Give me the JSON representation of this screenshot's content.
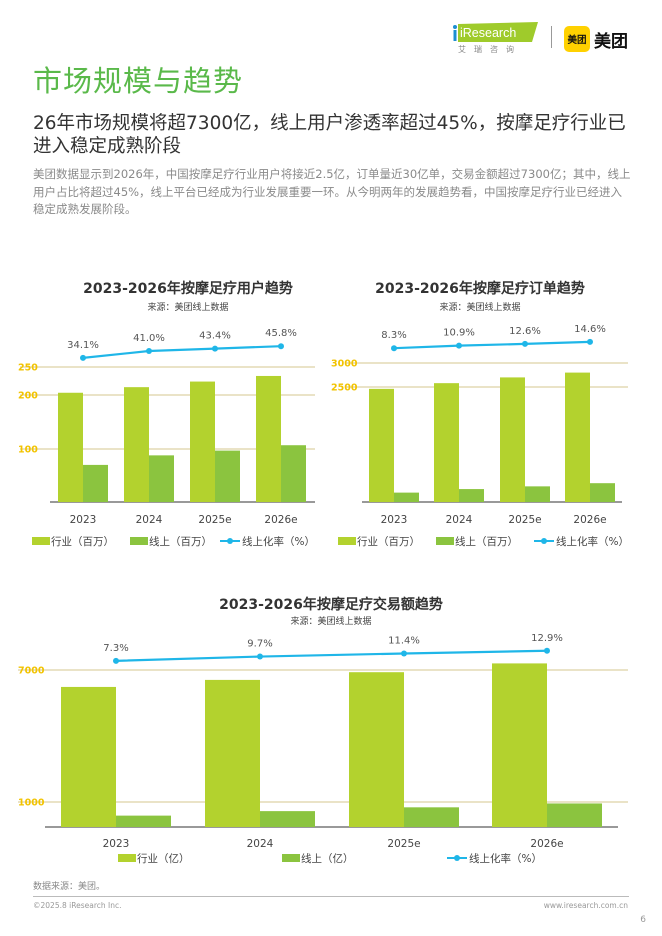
{
  "header": {
    "section_title": "市场规模与趋势",
    "logo_iresearch": "iResearch",
    "logo_iresearch_cn": "艾瑞咨询",
    "logo_meituan_badge": "美团",
    "logo_meituan": "美团"
  },
  "headline": "26年市场规模将超7300亿，线上用户渗透率超过45%，按摩足疗行业已进入稳定成熟阶段",
  "summary": "美团数据显示到2026年，中国按摩足疗行业用户将接近2.5亿，订单量近30亿单，交易金额超过7300亿；其中，线上用户占比将超过45%，线上平台已经成为行业发展重要一环。从今明两年的发展趋势看，中国按摩足疗行业已经进入稳定成熟发展阶段。",
  "colors": {
    "industry": "#b3d22e",
    "online": "#8bc43f",
    "rate": "#1fb6e8",
    "tick": "#f2c300",
    "title": "#5ab94a"
  },
  "chart_data": [
    {
      "type": "bar",
      "title": "2023-2026年按摩足疗用户趋势",
      "subtitle": "来源：美团线上数据",
      "categories": [
        "2023",
        "2024",
        "2025e",
        "2026e"
      ],
      "yticks": [
        100,
        200,
        250
      ],
      "y_axis_broken": true,
      "series": [
        {
          "name": "行业（百万）",
          "type": "bar",
          "values": [
            204,
            214,
            224,
            234
          ]
        },
        {
          "name": "线上（百万）",
          "type": "bar",
          "values": [
            70,
            88,
            97,
            107
          ]
        },
        {
          "name": "线上化率（%）",
          "type": "line",
          "values": [
            34.1,
            41.0,
            43.4,
            45.8
          ],
          "labels": [
            "34.1%",
            "41.0%",
            "43.4%",
            "45.8%"
          ]
        }
      ],
      "grid": true,
      "legend": "bottom"
    },
    {
      "type": "bar",
      "title": "2023-2026年按摩足疗订单趋势",
      "subtitle": "来源：美团线上数据",
      "categories": [
        "2023",
        "2024",
        "2025e",
        "2026e"
      ],
      "yticks": [
        2500,
        3000
      ],
      "y_axis_broken": true,
      "series": [
        {
          "name": "行业（百万）",
          "type": "bar",
          "values": [
            2460,
            2580,
            2700,
            2800
          ]
        },
        {
          "name": "线上（百万）",
          "type": "bar",
          "values": [
            204,
            281,
            340,
            409
          ]
        },
        {
          "name": "线上化率（%）",
          "type": "line",
          "values": [
            8.3,
            10.9,
            12.6,
            14.6
          ],
          "labels": [
            "8.3%",
            "10.9%",
            "12.6%",
            "14.6%"
          ]
        }
      ],
      "grid": true,
      "legend": "bottom"
    },
    {
      "type": "bar",
      "title": "2023-2026年按摩足疗交易额趋势",
      "subtitle": "来源：美团线上数据",
      "categories": [
        "2023",
        "2024",
        "2025e",
        "2026e"
      ],
      "yticks": [
        1000,
        7000
      ],
      "y_axis_broken": true,
      "series": [
        {
          "name": "行业（亿）",
          "type": "bar",
          "values": [
            6230,
            6550,
            6900,
            7300
          ]
        },
        {
          "name": "线上（亿）",
          "type": "bar",
          "values": [
            455,
            635,
            787,
            942
          ]
        },
        {
          "name": "线上化率（%）",
          "type": "line",
          "values": [
            7.3,
            9.7,
            11.4,
            12.9
          ],
          "labels": [
            "7.3%",
            "9.7%",
            "11.4%",
            "12.9%"
          ]
        }
      ],
      "grid": true,
      "legend": "bottom"
    }
  ],
  "footer": {
    "source": "数据来源：美团。",
    "copyright": "©2025.8 iResearch Inc.",
    "website": "www.iresearch.com.cn",
    "page_number": "6"
  }
}
